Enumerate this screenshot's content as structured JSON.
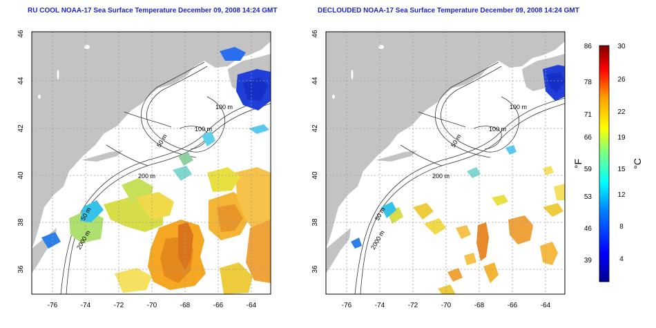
{
  "panels": [
    {
      "title": "RU COOL NOAA-17 Sea Surface Temperature December 09, 2008 14:24 GMT",
      "x_ticks": [
        "-76",
        "-74",
        "-72",
        "-70",
        "-68",
        "-66",
        "-64"
      ],
      "y_ticks": [
        "46",
        "44",
        "42",
        "40",
        "38",
        "36"
      ],
      "contour_labels": [
        "100 m",
        "100 m",
        "50 m",
        "200 m",
        "50 m",
        "2000 m"
      ]
    },
    {
      "title": "DECLOUDED NOAA-17 Sea Surface Temperature December 09, 2008 14:24 GMT",
      "x_ticks": [
        "-76",
        "-74",
        "-72",
        "-70",
        "-68",
        "-66",
        "-64"
      ],
      "y_ticks": [
        "46",
        "44",
        "42",
        "40",
        "38",
        "36"
      ],
      "contour_labels": [
        "100 m",
        "100 m",
        "50 m",
        "200 m",
        "50 m",
        "2000 m"
      ]
    }
  ],
  "colorbar": {
    "fahrenheit_ticks": [
      "86",
      "78",
      "71",
      "66",
      "59",
      "53",
      "46",
      "39"
    ],
    "celsius_ticks": [
      "30",
      "26",
      "22",
      "19",
      "15",
      "12",
      "8",
      "4"
    ],
    "fahrenheit_label": "°F",
    "celsius_label": "°C",
    "colors": [
      "#00008f",
      "#0000ff",
      "#007fff",
      "#00ffff",
      "#7fff7f",
      "#ffff00",
      "#ff7f00",
      "#ff0000",
      "#7f0000"
    ]
  },
  "colors": {
    "land": "#c3c3c3",
    "ocean": "#ffffff",
    "title": "#1a24c8"
  }
}
